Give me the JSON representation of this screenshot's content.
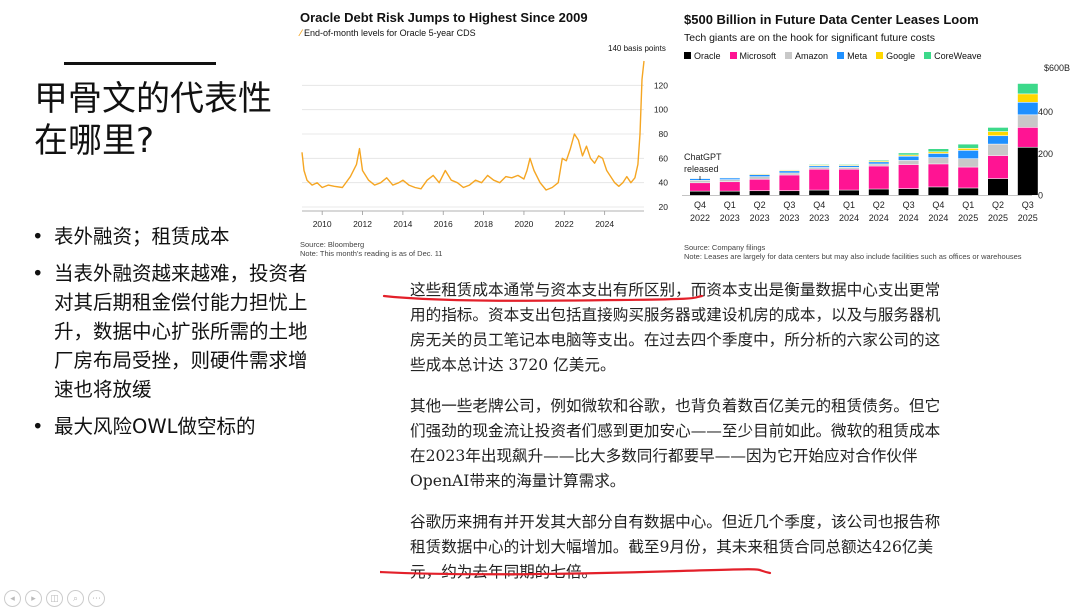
{
  "slide": {
    "title": "甲骨文的代表性在哪里?",
    "bullets": [
      "表外融资；租赁成本",
      "当表外融资越来越难，投资者对其后期租金偿付能力担忧上升，数据中心扩张所需的土地厂房布局受挫，则硬件需求增速也将放缓",
      "最大风险OWL做空标的"
    ]
  },
  "chart_left": {
    "title": "Oracle Debt Risk Jumps to Highest Since 2009",
    "legend_label": "End-of-month levels for Oracle 5-year CDS",
    "last_label": "140 basis points",
    "source": "Source: Bloomberg",
    "note": "Note: This month's reading is as of Dec. 11",
    "line_color": "#f5a623"
  },
  "chart_right": {
    "title": "$500 Billion in Future Data Center Leases Loom",
    "subtitle": "Tech giants are on the hook for significant future costs",
    "annotation": "ChatGPT released",
    "source": "Source: Company filings",
    "note": "Note: Leases are largely for data centers but may also include facilities such as offices or warehouses"
  },
  "chart_data": [
    {
      "type": "line",
      "title": "Oracle Debt Risk Jumps to Highest Since 2009",
      "series": [
        {
          "name": "End-of-month levels for Oracle 5-year CDS",
          "x": [
            2009.0,
            2009.1,
            2009.25,
            2009.5,
            2009.75,
            2010.0,
            2010.3,
            2010.6,
            2011.0,
            2011.4,
            2011.7,
            2011.85,
            2012.0,
            2012.3,
            2012.6,
            2012.9,
            2013.2,
            2013.5,
            2013.8,
            2014.0,
            2014.3,
            2014.6,
            2014.9,
            2015.2,
            2015.5,
            2015.8,
            2016.1,
            2016.4,
            2016.7,
            2017.0,
            2017.3,
            2017.6,
            2017.9,
            2018.2,
            2018.5,
            2018.8,
            2019.1,
            2019.4,
            2019.7,
            2020.0,
            2020.15,
            2020.3,
            2020.5,
            2020.8,
            2021.1,
            2021.4,
            2021.7,
            2021.9,
            2022.1,
            2022.3,
            2022.5,
            2022.7,
            2022.9,
            2023.1,
            2023.3,
            2023.5,
            2023.7,
            2023.9,
            2024.1,
            2024.3,
            2024.5,
            2024.7,
            2024.9,
            2025.1,
            2025.3,
            2025.5,
            2025.65,
            2025.75,
            2025.85,
            2025.95
          ],
          "values": [
            65,
            50,
            42,
            38,
            40,
            36,
            38,
            37,
            36,
            45,
            55,
            68,
            50,
            42,
            38,
            40,
            44,
            38,
            40,
            42,
            38,
            36,
            35,
            42,
            46,
            40,
            50,
            42,
            40,
            36,
            38,
            42,
            40,
            46,
            42,
            40,
            45,
            44,
            46,
            43,
            50,
            60,
            50,
            40,
            34,
            36,
            40,
            60,
            58,
            68,
            80,
            75,
            62,
            70,
            60,
            56,
            62,
            60,
            50,
            45,
            40,
            37,
            40,
            45,
            40,
            44,
            55,
            80,
            125,
            140
          ]
        }
      ],
      "x_ticks": [
        "2010",
        "2012",
        "2014",
        "2016",
        "2018",
        "2020",
        "2022",
        "2024"
      ],
      "y_ticks": [
        20,
        40,
        60,
        80,
        100,
        120
      ],
      "ylim": [
        20,
        140
      ],
      "grid": true
    },
    {
      "type": "bar",
      "title": "$500 Billion in Future Data Center Leases Loom",
      "categories": [
        "Q4 2022",
        "Q1 2023",
        "Q2 2023",
        "Q3 2023",
        "Q4 2023",
        "Q1 2024",
        "Q2 2024",
        "Q3 2024",
        "Q4 2024",
        "Q1 2025",
        "Q2 2025",
        "Q3 2025"
      ],
      "tick_top": [
        "Q4",
        "Q1",
        "Q2",
        "Q3",
        "Q4",
        "Q1",
        "Q2",
        "Q3",
        "Q4",
        "Q1",
        "Q2",
        "Q3"
      ],
      "tick_bottom": [
        "2022",
        "2023",
        "2023",
        "2023",
        "2023",
        "2024",
        "2024",
        "2024",
        "2024",
        "2025",
        "2025",
        "2025"
      ],
      "y_ticks": [
        "0",
        "200",
        "400",
        "$600B"
      ],
      "ylim": [
        -40,
        620
      ],
      "series": [
        {
          "name": "Oracle",
          "color": "#000000",
          "values": [
            20,
            20,
            22,
            22,
            25,
            25,
            30,
            32,
            40,
            35,
            80,
            230
          ]
        },
        {
          "name": "Microsoft",
          "color": "#ff1493",
          "values": [
            40,
            45,
            55,
            75,
            100,
            100,
            110,
            115,
            110,
            100,
            110,
            95
          ]
        },
        {
          "name": "Amazon",
          "color": "#c8c8c8",
          "values": [
            12,
            10,
            12,
            10,
            8,
            9,
            10,
            20,
            30,
            40,
            55,
            60
          ]
        },
        {
          "name": "Meta",
          "color": "#1e90ff",
          "values": [
            8,
            8,
            10,
            10,
            8,
            8,
            10,
            20,
            20,
            40,
            40,
            60
          ]
        },
        {
          "name": "Google",
          "color": "#ffd700",
          "values": [
            3,
            3,
            4,
            4,
            4,
            4,
            5,
            6,
            8,
            10,
            20,
            40
          ]
        },
        {
          "name": "CoreWeave",
          "color": "#3cd98a",
          "values": [
            2,
            2,
            3,
            3,
            4,
            4,
            5,
            10,
            15,
            20,
            20,
            50
          ]
        }
      ]
    }
  ],
  "article": {
    "p1_u": "这些租赁成本通常与资本支出有所区别",
    "p1_rest": "，而资本支出是衡量数据中心支出更常用的指标。资本支出包括直接购买服务器或建设机房的成本，以及与服务器机房无关的员工笔记本电脑等支出。在过去四个季度中，所分析的六家公司的这些成本总计达 3720 亿美元。",
    "p2": "其他一些老牌公司，例如微软和谷歌，也背负着数百亿美元的租赁债务。但它们强劲的现金流让投资者们感到更加安心——至少目前如此。微软的租赁成本在2023年出现飙升——比大多数同行都要早——因为它开始应对合作伙伴OpenAI带来的海量计算需求。",
    "p3_a": "谷歌历来拥有并开发其大部分自有数据中心。但近几个季度，该公司",
    "p3_u": "也报告称租赁数据中心的计划大幅增加。截至9月份",
    "p3_rest": "，其未来租赁合同总额达426亿美元，约为去年同期的七倍。"
  },
  "controls": {
    "icons": [
      "◂",
      "▸",
      "◫",
      "⌕",
      "⋯"
    ]
  }
}
